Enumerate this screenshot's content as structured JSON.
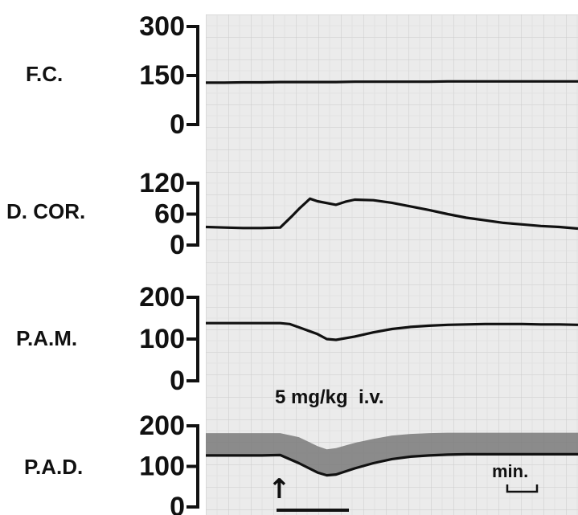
{
  "chart_data": {
    "type": "line",
    "panels": [
      {
        "label": "F.C.",
        "ticks": [
          "300",
          "150",
          "0"
        ],
        "ylim": [
          0,
          300
        ],
        "x": [
          0,
          1,
          2,
          3,
          4,
          5,
          6,
          7,
          8,
          9,
          10,
          11,
          12,
          13,
          14,
          15,
          16,
          17,
          18,
          19,
          20
        ],
        "values": [
          128,
          128,
          129,
          129,
          130,
          130,
          130,
          130,
          131,
          131,
          131,
          131,
          131,
          132,
          132,
          132,
          132,
          132,
          132,
          132,
          132
        ]
      },
      {
        "label": "D. COR.",
        "ticks": [
          "120",
          "60",
          "0"
        ],
        "ylim": [
          0,
          120
        ],
        "x": [
          0,
          1,
          2,
          3,
          4,
          4.6,
          5,
          5.6,
          6,
          7,
          7.5,
          8,
          9,
          10,
          11,
          12,
          13,
          14,
          15,
          16,
          17,
          18,
          19,
          20
        ],
        "values": [
          35,
          34,
          33,
          33,
          34,
          55,
          70,
          90,
          85,
          78,
          84,
          88,
          87,
          82,
          75,
          68,
          60,
          53,
          48,
          43,
          40,
          37,
          35,
          32
        ]
      },
      {
        "label": "P.A.M.",
        "ticks": [
          "200",
          "100",
          "0"
        ],
        "ylim": [
          0,
          200
        ],
        "x": [
          0,
          1,
          2,
          3,
          4,
          4.5,
          5,
          6,
          6.5,
          7,
          8,
          9,
          10,
          11,
          12,
          13,
          14,
          15,
          16,
          17,
          18,
          19,
          20
        ],
        "values": [
          138,
          138,
          138,
          138,
          138,
          136,
          128,
          112,
          100,
          98,
          106,
          116,
          124,
          129,
          132,
          134,
          135,
          136,
          136,
          136,
          135,
          135,
          134
        ]
      },
      {
        "label": "P.A.D.",
        "ticks": [
          "200",
          "100",
          "0"
        ],
        "ylim": [
          0,
          200
        ],
        "x": [
          0,
          1,
          2,
          3,
          4,
          5,
          6,
          6.5,
          7,
          8,
          9,
          10,
          11,
          12,
          13,
          14,
          15,
          16,
          17,
          18,
          19,
          20
        ],
        "values": [
          127,
          127,
          127,
          127,
          128,
          108,
          85,
          78,
          80,
          95,
          108,
          118,
          124,
          127,
          129,
          130,
          130,
          130,
          130,
          130,
          130,
          130
        ],
        "band_upper": [
          182,
          182,
          182,
          182,
          182,
          172,
          150,
          142,
          145,
          158,
          168,
          176,
          180,
          182,
          183,
          183,
          183,
          183,
          183,
          183,
          183,
          183
        ]
      }
    ],
    "annotations": {
      "dose": "5 mg/kg  i.v.",
      "scale_bar": "min.",
      "arrow": "↑"
    }
  }
}
